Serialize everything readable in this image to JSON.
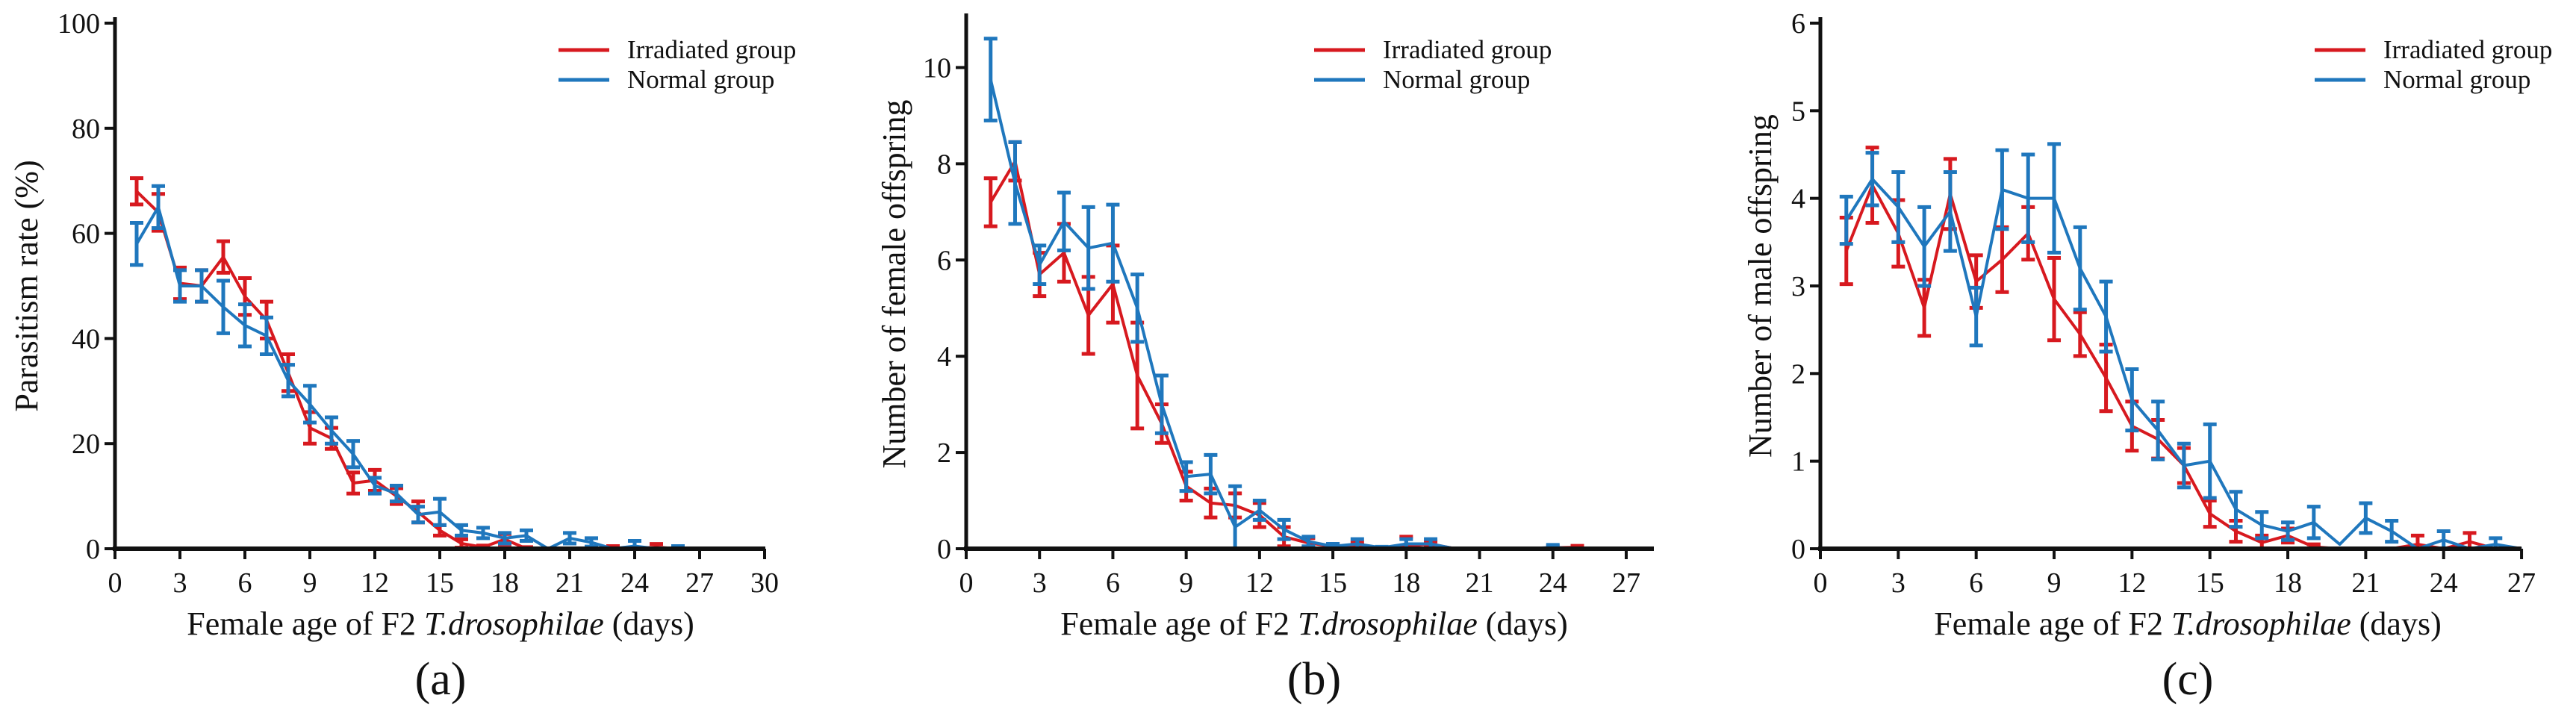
{
  "colors": {
    "irradiated": "#d7191f",
    "normal": "#1f77bd",
    "axis": "#111111"
  },
  "chart_data": [
    {
      "type": "line",
      "panel_label": "(a)",
      "xlabel_prefix": "Female age of F2 ",
      "xlabel_italic": "T.drosophilae",
      "xlabel_suffix": " (days)",
      "ylabel": "Parasitism rate (%)",
      "xlim": [
        0,
        30
      ],
      "ylim": [
        0,
        100
      ],
      "xticks": [
        0,
        3,
        6,
        9,
        12,
        15,
        18,
        21,
        24,
        27,
        30
      ],
      "yticks": [
        0,
        20,
        40,
        60,
        80,
        100
      ],
      "legend": "top-right",
      "x": [
        1,
        2,
        3,
        4,
        5,
        6,
        7,
        8,
        9,
        10,
        11,
        12,
        13,
        14,
        15,
        16,
        17,
        18,
        19,
        20,
        21,
        22,
        23,
        24,
        25,
        26
      ],
      "series": [
        {
          "name": "Irradiated group",
          "color_key": "irradiated",
          "values": [
            68,
            64,
            50.5,
            50,
            55.5,
            48,
            43.5,
            33.5,
            23,
            21,
            12.5,
            13,
            10,
            7,
            3.5,
            1,
            0.3,
            1.8,
            0,
            0,
            0,
            0,
            0.2,
            0,
            0.3,
            0
          ],
          "errors": [
            2.5,
            3.5,
            3,
            3,
            3,
            3.5,
            3.5,
            3.5,
            3,
            2,
            2,
            2,
            1.5,
            2,
            1,
            0.8,
            0.3,
            1,
            0.3,
            0,
            0,
            0,
            0.3,
            0,
            0.6,
            0
          ]
        },
        {
          "name": "Normal group",
          "color_key": "normal",
          "values": [
            58,
            65,
            50,
            50,
            46,
            42.5,
            40.5,
            32,
            27.5,
            22.5,
            18,
            12,
            10.5,
            6.5,
            7,
            3.5,
            3,
            2,
            2.5,
            0,
            2,
            1.2,
            0,
            0.5,
            0,
            0.2
          ],
          "errors": [
            4,
            4,
            3,
            3,
            5,
            4,
            3.5,
            3,
            3.5,
            2.5,
            2.5,
            1.5,
            1.5,
            1.5,
            2.5,
            1,
            1,
            1,
            1,
            0,
            1,
            0.8,
            0,
            1,
            0,
            0.3
          ]
        }
      ]
    },
    {
      "type": "line",
      "panel_label": "(b)",
      "xlabel_prefix": "Female age of F2 ",
      "xlabel_italic": "T.drosophilae",
      "xlabel_suffix": " (days)",
      "ylabel": "Number of female offspring",
      "xlim": [
        0,
        28
      ],
      "ylim": [
        0,
        11
      ],
      "xticks": [
        0,
        3,
        6,
        9,
        12,
        15,
        18,
        21,
        24,
        27
      ],
      "yticks": [
        0,
        2,
        4,
        6,
        8,
        10
      ],
      "legend": "top-right",
      "x": [
        1,
        2,
        3,
        4,
        5,
        6,
        7,
        8,
        9,
        10,
        11,
        12,
        13,
        14,
        15,
        16,
        17,
        18,
        19,
        20,
        21,
        22,
        23,
        24,
        25
      ],
      "series": [
        {
          "name": "Irradiated group",
          "color_key": "irradiated",
          "values": [
            7.2,
            8.05,
            5.7,
            6.15,
            4.85,
            5.5,
            3.6,
            2.6,
            1.3,
            0.95,
            0.9,
            0.7,
            0.25,
            0.12,
            0.05,
            0.08,
            0,
            0.05,
            0.1,
            0,
            0,
            0,
            0,
            0.02,
            0.03
          ],
          "errors": [
            0.5,
            0.4,
            0.45,
            0.6,
            0.8,
            0.8,
            1.1,
            0.4,
            0.3,
            0.3,
            0.25,
            0.25,
            0.2,
            0.1,
            0.05,
            0.05,
            0,
            0.2,
            0.05,
            0,
            0,
            0,
            0,
            0.03,
            0.03
          ]
        },
        {
          "name": "Normal group",
          "color_key": "normal",
          "values": [
            9.75,
            7.6,
            5.9,
            6.8,
            6.25,
            6.35,
            5.0,
            3.0,
            1.5,
            1.55,
            0.45,
            0.8,
            0.4,
            0.15,
            0.05,
            0.1,
            0.02,
            0.1,
            0.1,
            0,
            0,
            0,
            0,
            0.03,
            0
          ],
          "errors": [
            0.85,
            0.85,
            0.4,
            0.6,
            0.85,
            0.8,
            0.7,
            0.6,
            0.3,
            0.4,
            0.85,
            0.2,
            0.2,
            0.1,
            0.05,
            0.1,
            0.02,
            0.1,
            0.1,
            0,
            0,
            0,
            0,
            0.05,
            0
          ]
        }
      ]
    },
    {
      "type": "line",
      "panel_label": "(c)",
      "xlabel_prefix": "Female age of F2 ",
      "xlabel_italic": "T.drosophilae",
      "xlabel_suffix": " (days)",
      "ylabel": "Number of male offspring",
      "xlim": [
        0,
        27
      ],
      "ylim": [
        0,
        6
      ],
      "xticks": [
        0,
        3,
        6,
        9,
        12,
        15,
        18,
        21,
        24,
        27
      ],
      "yticks": [
        0,
        1,
        2,
        3,
        4,
        5,
        6
      ],
      "legend": "top-right",
      "x": [
        1,
        2,
        3,
        4,
        5,
        6,
        7,
        8,
        9,
        10,
        11,
        12,
        13,
        14,
        15,
        16,
        17,
        18,
        19,
        20,
        21,
        22,
        23,
        24,
        25,
        26,
        27
      ],
      "series": [
        {
          "name": "Irradiated group",
          "color_key": "irradiated",
          "values": [
            3.4,
            4.15,
            3.6,
            2.75,
            4.05,
            3.05,
            3.3,
            3.6,
            2.85,
            2.45,
            1.95,
            1.4,
            1.25,
            0.95,
            0.4,
            0.2,
            0.07,
            0.15,
            0.02,
            0,
            0,
            0,
            0.05,
            0,
            0.08,
            0,
            0
          ],
          "errors": [
            0.38,
            0.43,
            0.38,
            0.32,
            0.4,
            0.3,
            0.37,
            0.3,
            0.47,
            0.25,
            0.38,
            0.28,
            0.22,
            0.2,
            0.15,
            0.12,
            0.08,
            0.08,
            0.03,
            0,
            0,
            0,
            0.1,
            0,
            0.1,
            0,
            0
          ]
        },
        {
          "name": "Normal group",
          "color_key": "normal",
          "values": [
            3.75,
            4.22,
            3.9,
            3.45,
            3.85,
            2.65,
            4.1,
            4.0,
            4.0,
            3.2,
            2.65,
            1.7,
            1.35,
            0.95,
            1.0,
            0.45,
            0.27,
            0.2,
            0.3,
            0.05,
            0.35,
            0.2,
            0,
            0.1,
            0,
            0.05,
            0
          ],
          "errors": [
            0.27,
            0.3,
            0.4,
            0.45,
            0.45,
            0.33,
            0.45,
            0.5,
            0.62,
            0.47,
            0.4,
            0.35,
            0.33,
            0.25,
            0.42,
            0.2,
            0.15,
            0.1,
            0.18,
            0,
            0.17,
            0.12,
            0,
            0.1,
            0,
            0.07,
            0
          ]
        }
      ]
    }
  ]
}
